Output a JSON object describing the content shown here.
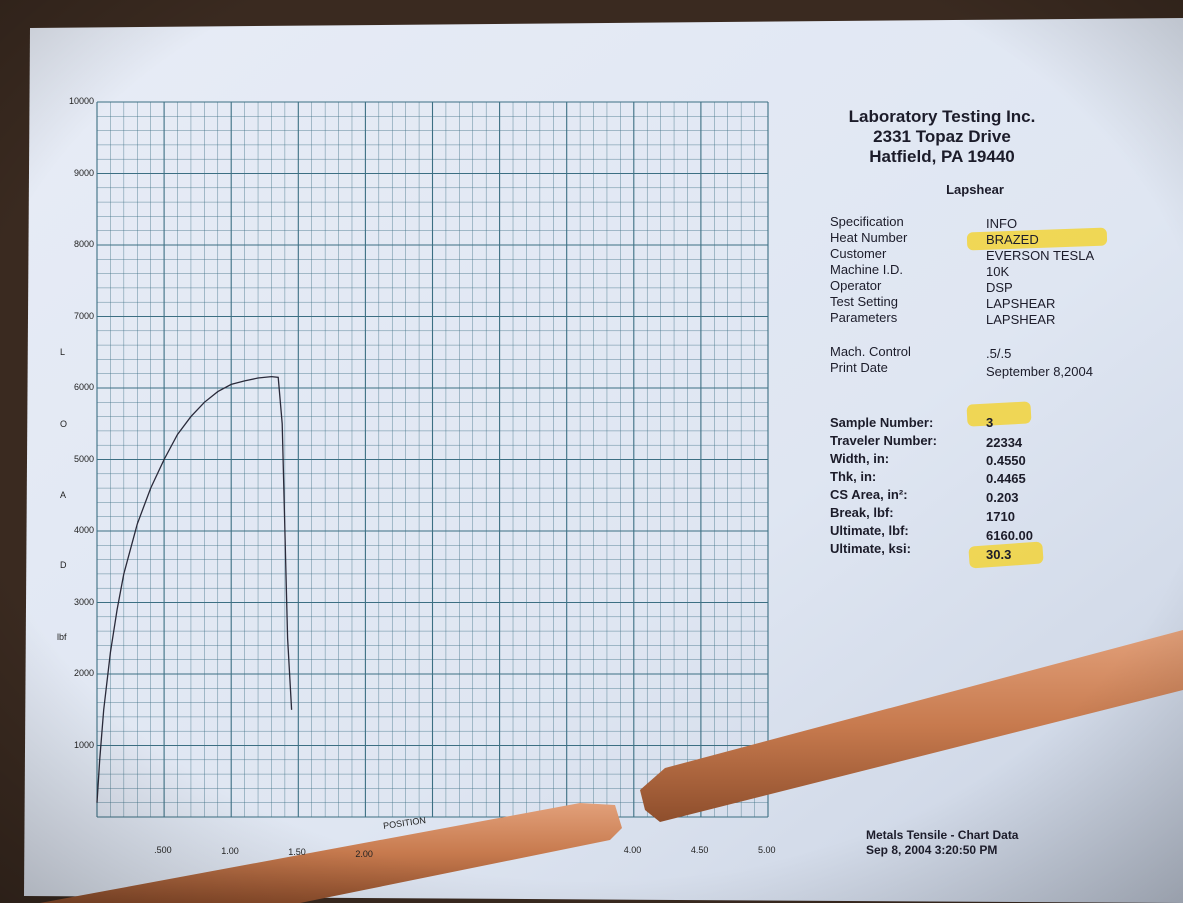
{
  "chart_data": {
    "type": "line",
    "ylabel_letters": [
      "L",
      "O",
      "A",
      "D",
      "lbf"
    ],
    "xlabel": "POSITION",
    "x_ticks": [
      ".500",
      "1.00",
      "1.50",
      "2.00",
      "4.00",
      "4.50",
      "5.00"
    ],
    "y_ticks": [
      "1000",
      "2000",
      "3000",
      "4000",
      "5000",
      "6000",
      "7000",
      "8000",
      "9000",
      "10000"
    ],
    "xlim": [
      0,
      5
    ],
    "ylim": [
      0,
      10000
    ],
    "series": [
      {
        "x": [
          0,
          0.02,
          0.05,
          0.1,
          0.15,
          0.2,
          0.3,
          0.4,
          0.5,
          0.6,
          0.7,
          0.8,
          0.9,
          1.0,
          1.1,
          1.2,
          1.3,
          1.35,
          1.38,
          1.4,
          1.42,
          1.45
        ],
        "y": [
          200,
          800,
          1500,
          2300,
          2900,
          3400,
          4100,
          4600,
          5000,
          5350,
          5600,
          5800,
          5950,
          6050,
          6100,
          6140,
          6160,
          6150,
          5500,
          4000,
          2500,
          1500
        ]
      }
    ]
  },
  "report": {
    "company": "Laboratory Testing Inc.",
    "address1": "2331 Topaz Drive",
    "address2": "Hatfield, PA 19440",
    "test_type": "Lapshear",
    "specification_label": "Specification",
    "specification_value": "INFO",
    "heat_label": "Heat Number",
    "heat_value": "BRAZED",
    "customer_label": "Customer",
    "customer_value": "EVERSON TESLA",
    "machine_label": "Machine I.D.",
    "machine_value": "10K",
    "operator_label": "Operator",
    "operator_value": "DSP",
    "setting_label": "Test Setting",
    "setting_value": "LAPSHEAR",
    "parameters_label": "Parameters",
    "parameters_value": "LAPSHEAR",
    "control_label": "Mach. Control",
    "control_value": ".5/.5",
    "print_label": "Print Date",
    "print_value": "September 8,2004",
    "sample_label": "Sample Number:",
    "sample_value": "3",
    "traveler_label": "Traveler Number:",
    "traveler_value": "22334",
    "width_label": "Width, in:",
    "width_value": "0.4550",
    "thk_label": "Thk, in:",
    "thk_value": "0.4465",
    "area_label": "CS Area, in²:",
    "area_value": "0.203",
    "break_label": "Break, lbf:",
    "break_value": "1710",
    "ult_lbf_label": "Ultimate, lbf:",
    "ult_lbf_value": "6160.00",
    "ult_ksi_label": "Ultimate, ksi:",
    "ult_ksi_value": "30.3",
    "footer1": "Metals Tensile - Chart Data",
    "footer2": "Sep 8, 2004 3:20:50 PM"
  },
  "colors": {
    "paper": "#dfe6f2",
    "grid": "#3c6f83",
    "curve": "#2a2a3a",
    "highlight": "#f2d43a",
    "copper": "#c77a4e"
  }
}
